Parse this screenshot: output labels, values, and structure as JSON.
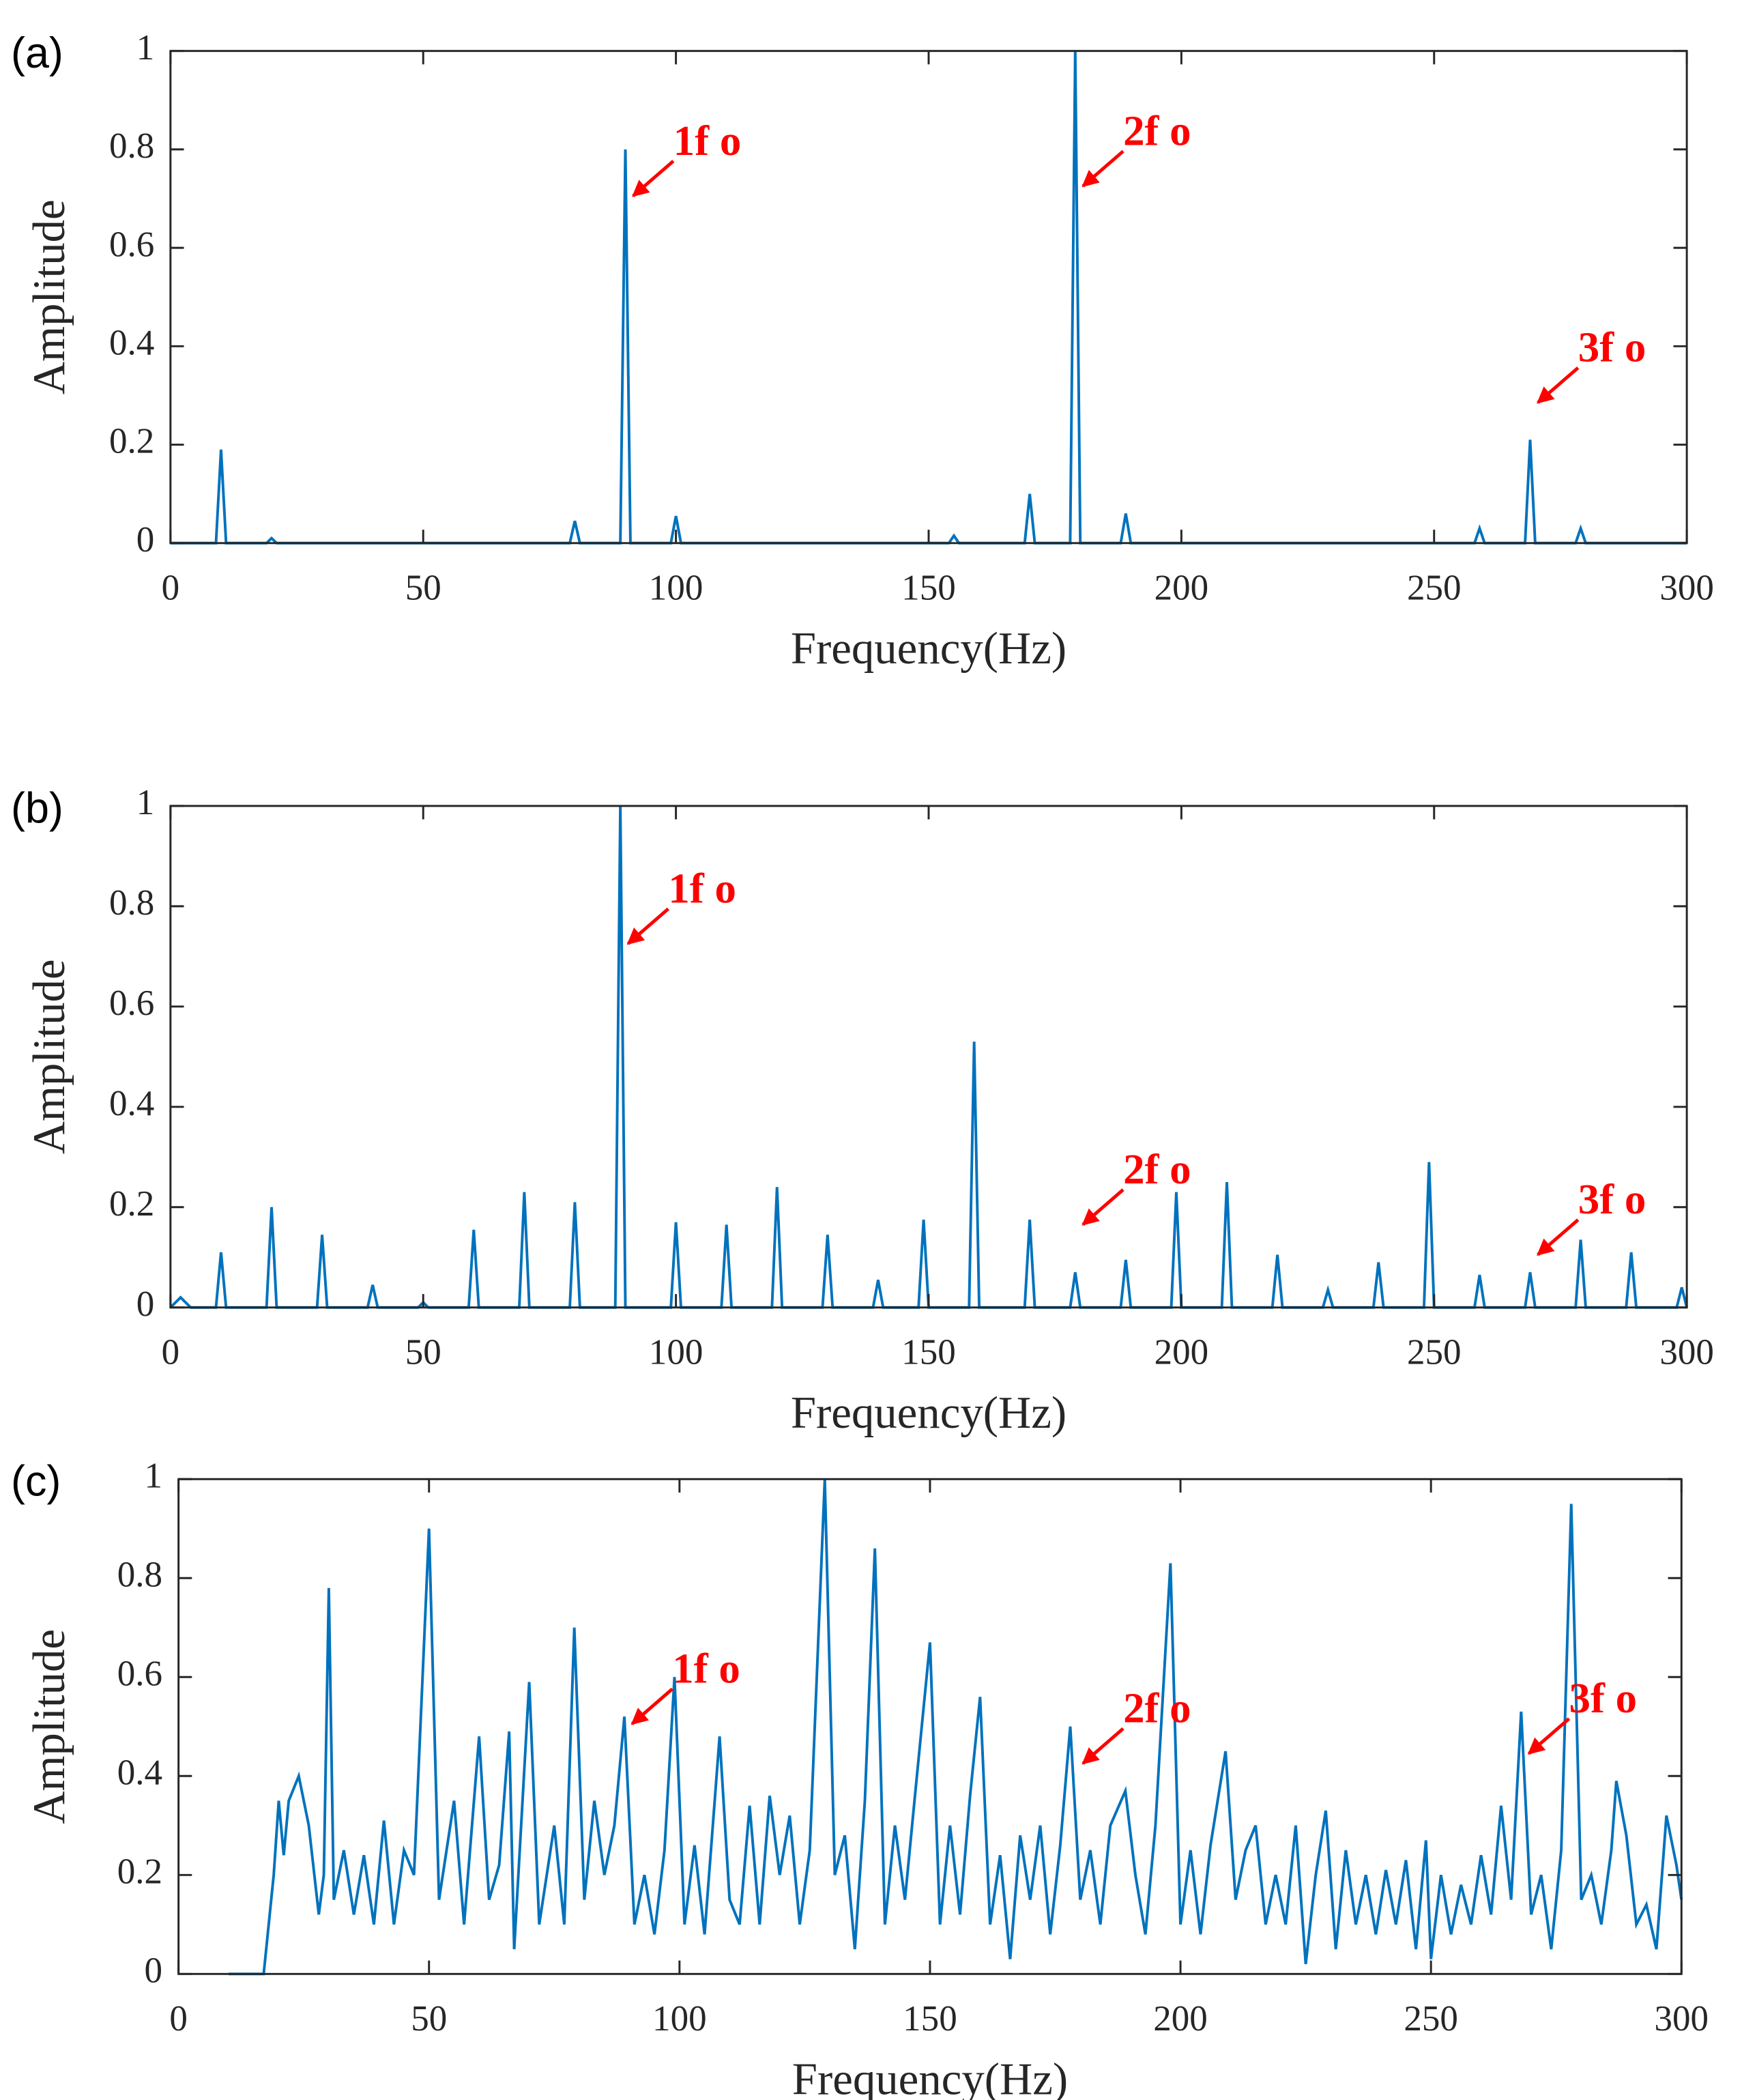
{
  "chart_data": [
    {
      "type": "line",
      "label": "(a)",
      "xlabel": "Frequency(Hz)",
      "ylabel": "Amplitude",
      "color": "#0072bd",
      "xlim": [
        0,
        300
      ],
      "ylim": [
        0,
        1
      ],
      "xticks": [
        0,
        50,
        100,
        150,
        200,
        250,
        300
      ],
      "yticks": [
        0,
        0.2,
        0.4,
        0.6,
        0.8,
        1
      ],
      "x": [
        0,
        9,
        10,
        11,
        19,
        20,
        21,
        79,
        80,
        81,
        89,
        90,
        91,
        99,
        100,
        101,
        154,
        155,
        156,
        169,
        170,
        171,
        178,
        179,
        180,
        188,
        189,
        190,
        258,
        259,
        260,
        268,
        269,
        270,
        278,
        279,
        280,
        300
      ],
      "values": [
        0,
        0,
        0.19,
        0,
        0,
        0.01,
        0,
        0,
        0.045,
        0,
        0,
        0.8,
        0,
        0,
        0.055,
        0,
        0,
        0.015,
        0,
        0,
        0.1,
        0,
        0,
        1.0,
        0,
        0,
        0.06,
        0,
        0,
        0.03,
        0,
        0,
        0.21,
        0,
        0,
        0.03,
        0,
        0
      ],
      "annotations": [
        {
          "text": "1f o",
          "x": 91,
          "y": 0.7
        },
        {
          "text": "2f o",
          "x": 180,
          "y": 0.72
        },
        {
          "text": "3f o",
          "x": 270,
          "y": 0.28
        }
      ]
    },
    {
      "type": "line",
      "label": "(b)",
      "xlabel": "Frequency(Hz)",
      "ylabel": "Amplitude",
      "color": "#0072bd",
      "xlim": [
        0,
        300
      ],
      "ylim": [
        0,
        1
      ],
      "xticks": [
        0,
        50,
        100,
        150,
        200,
        250,
        300
      ],
      "yticks": [
        0,
        0.2,
        0.4,
        0.6,
        0.8,
        1
      ],
      "x": [
        0,
        2,
        4,
        9,
        10,
        11,
        19,
        20,
        21,
        29,
        30,
        31,
        39,
        40,
        41,
        49,
        50,
        51,
        59,
        60,
        61,
        69,
        70,
        71,
        79,
        80,
        81,
        88,
        89,
        90,
        99,
        100,
        101,
        109,
        110,
        111,
        119,
        120,
        121,
        129,
        130,
        131,
        139,
        140,
        141,
        148,
        149,
        150,
        158,
        159,
        160,
        169,
        170,
        171,
        178,
        179,
        180,
        188,
        189,
        190,
        198,
        199,
        200,
        208,
        209,
        210,
        218,
        219,
        220,
        228,
        229,
        230,
        238,
        239,
        240,
        248,
        249,
        250,
        258,
        259,
        260,
        268,
        269,
        270,
        278,
        279,
        280,
        288,
        289,
        290,
        298,
        299,
        300
      ],
      "values": [
        0,
        0.02,
        0,
        0,
        0.11,
        0,
        0,
        0.2,
        0,
        0,
        0.145,
        0,
        0,
        0.045,
        0,
        0,
        0.01,
        0,
        0,
        0.155,
        0,
        0,
        0.23,
        0,
        0,
        0.21,
        0,
        0,
        1.0,
        0,
        0,
        0.17,
        0,
        0,
        0.165,
        0,
        0,
        0.24,
        0,
        0,
        0.145,
        0,
        0,
        0.055,
        0,
        0,
        0.175,
        0,
        0,
        0.53,
        0,
        0,
        0.175,
        0,
        0,
        0.07,
        0,
        0,
        0.095,
        0,
        0,
        0.23,
        0,
        0,
        0.25,
        0,
        0,
        0.105,
        0,
        0,
        0.035,
        0,
        0,
        0.09,
        0,
        0,
        0.29,
        0,
        0,
        0.065,
        0,
        0,
        0.07,
        0,
        0,
        0.135,
        0,
        0,
        0.11,
        0,
        0,
        0.04,
        0
      ],
      "annotations": [
        {
          "text": "1f o",
          "x": 90,
          "y": 0.72
        },
        {
          "text": "2f o",
          "x": 180,
          "y": 0.16
        },
        {
          "text": "3f o",
          "x": 270,
          "y": 0.1
        }
      ]
    },
    {
      "type": "line",
      "label": "(c)",
      "xlabel": "Frequency(Hz)",
      "ylabel": "Amplitude",
      "color": "#0072bd",
      "xlim": [
        0,
        300
      ],
      "ylim": [
        0,
        1
      ],
      "xticks": [
        0,
        50,
        100,
        150,
        200,
        250,
        300
      ],
      "yticks": [
        0,
        0.2,
        0.4,
        0.6,
        0.8,
        1
      ],
      "x": [
        10,
        17,
        19,
        20,
        21,
        22,
        24,
        26,
        28,
        29,
        30,
        31,
        33,
        35,
        37,
        39,
        41,
        43,
        45,
        47,
        50,
        52,
        55,
        57,
        60,
        62,
        64,
        66,
        67,
        70,
        72,
        75,
        77,
        79,
        81,
        83,
        85,
        87,
        89,
        91,
        93,
        95,
        97,
        99,
        101,
        103,
        105,
        108,
        110,
        112,
        114,
        116,
        118,
        120,
        122,
        124,
        126,
        129,
        131,
        133,
        135,
        137,
        139,
        141,
        143,
        145,
        147,
        150,
        152,
        154,
        156,
        158,
        160,
        162,
        164,
        166,
        168,
        170,
        172,
        174,
        176,
        178,
        180,
        182,
        184,
        186,
        189,
        191,
        193,
        195,
        198,
        200,
        202,
        204,
        206,
        209,
        211,
        213,
        215,
        217,
        219,
        221,
        223,
        225,
        227,
        229,
        231,
        233,
        235,
        237,
        239,
        241,
        243,
        245,
        247,
        249,
        250,
        252,
        254,
        256,
        258,
        260,
        262,
        264,
        266,
        268,
        270,
        272,
        274,
        276,
        278,
        280,
        282,
        284,
        286,
        287,
        289,
        291,
        293,
        295,
        297,
        299,
        300
      ],
      "values": [
        0,
        0,
        0.2,
        0.35,
        0.24,
        0.35,
        0.4,
        0.3,
        0.12,
        0.2,
        0.78,
        0.15,
        0.25,
        0.12,
        0.24,
        0.1,
        0.31,
        0.1,
        0.25,
        0.2,
        0.9,
        0.15,
        0.35,
        0.1,
        0.48,
        0.15,
        0.22,
        0.49,
        0.05,
        0.59,
        0.1,
        0.3,
        0.1,
        0.7,
        0.15,
        0.35,
        0.2,
        0.3,
        0.52,
        0.1,
        0.2,
        0.08,
        0.25,
        0.6,
        0.1,
        0.26,
        0.08,
        0.48,
        0.15,
        0.1,
        0.34,
        0.1,
        0.36,
        0.2,
        0.32,
        0.1,
        0.25,
        1.0,
        0.2,
        0.28,
        0.05,
        0.35,
        0.86,
        0.1,
        0.3,
        0.15,
        0.36,
        0.67,
        0.1,
        0.3,
        0.12,
        0.36,
        0.56,
        0.1,
        0.24,
        0.03,
        0.28,
        0.15,
        0.3,
        0.08,
        0.26,
        0.5,
        0.15,
        0.25,
        0.1,
        0.3,
        0.37,
        0.2,
        0.08,
        0.3,
        0.83,
        0.1,
        0.25,
        0.08,
        0.26,
        0.45,
        0.15,
        0.25,
        0.3,
        0.1,
        0.2,
        0.1,
        0.3,
        0.02,
        0.2,
        0.33,
        0.05,
        0.25,
        0.1,
        0.2,
        0.08,
        0.21,
        0.1,
        0.23,
        0.05,
        0.27,
        0.03,
        0.2,
        0.08,
        0.18,
        0.1,
        0.24,
        0.12,
        0.34,
        0.15,
        0.53,
        0.12,
        0.2,
        0.05,
        0.25,
        0.95,
        0.15,
        0.2,
        0.1,
        0.25,
        0.39,
        0.28,
        0.1,
        0.14,
        0.05,
        0.32,
        0.22,
        0.15
      ],
      "annotations": [
        {
          "text": "1f o",
          "x": 90,
          "y": 0.5
        },
        {
          "text": "2f o",
          "x": 180,
          "y": 0.42
        },
        {
          "text": "3f o",
          "x": 269,
          "y": 0.44
        }
      ]
    }
  ]
}
